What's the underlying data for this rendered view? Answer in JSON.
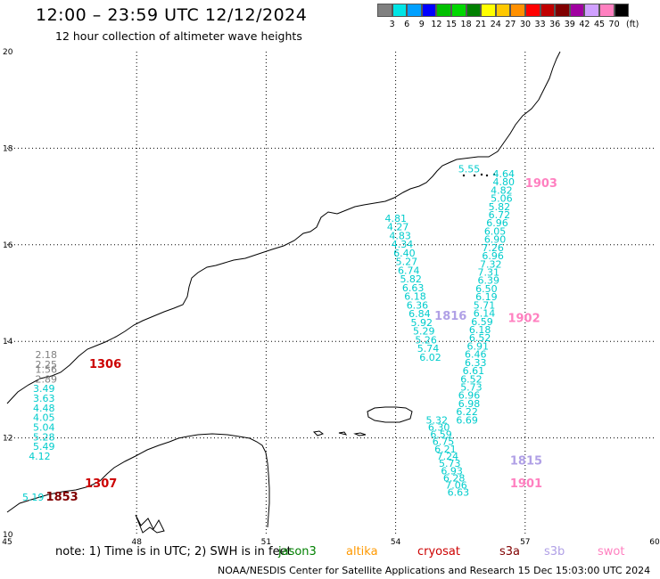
{
  "title": "12:00 – 23:59 UTC 12/12/2024",
  "subtitle": "12 hour collection of altimeter wave heights",
  "legend": {
    "unit_label": "(ft)",
    "bins": [
      {
        "color": "#808080",
        "label": "3"
      },
      {
        "color": "#00e5e5",
        "label": "6"
      },
      {
        "color": "#00a0ff",
        "label": "9"
      },
      {
        "color": "#0000ff",
        "label": "12"
      },
      {
        "color": "#00c000",
        "label": "15"
      },
      {
        "color": "#00d800",
        "label": "18"
      },
      {
        "color": "#008000",
        "label": "21"
      },
      {
        "color": "#ffff00",
        "label": "24"
      },
      {
        "color": "#ffc800",
        "label": "27"
      },
      {
        "color": "#ff9000",
        "label": "30"
      },
      {
        "color": "#ff0000",
        "label": "33"
      },
      {
        "color": "#c00000",
        "label": "36"
      },
      {
        "color": "#800000",
        "label": "39"
      },
      {
        "color": "#a000a0",
        "label": "42"
      },
      {
        "color": "#d0a0ff",
        "label": "45"
      },
      {
        "color": "#ff80c0",
        "label": "70"
      },
      {
        "color": "#000000",
        "label": ""
      }
    ]
  },
  "map": {
    "lon_range": [
      45,
      60
    ],
    "lat_range": [
      10,
      20
    ],
    "lon_ticks": [
      45,
      48,
      51,
      54,
      57,
      60
    ],
    "lat_ticks": [
      10,
      12,
      14,
      16,
      18,
      20
    ],
    "tracks": [
      {
        "satellite": "cryosat",
        "color": "#cc0000",
        "times": [
          {
            "label": "1306",
            "lon": 46.9,
            "lat": 13.45
          },
          {
            "label": "1307",
            "lon": 46.8,
            "lat": 10.98
          }
        ],
        "points": [
          {
            "lon": 45.65,
            "lat": 13.65,
            "value": "2.18",
            "color": "#808080"
          },
          {
            "lon": 45.65,
            "lat": 13.45,
            "value": "2.25",
            "color": "#808080"
          },
          {
            "lon": 45.65,
            "lat": 13.35,
            "value": "1.56",
            "color": "#808080"
          },
          {
            "lon": 45.65,
            "lat": 13.15,
            "value": "2.89",
            "color": "#808080"
          },
          {
            "lon": 45.6,
            "lat": 12.95,
            "value": "3.49",
            "color": "#00cccc"
          },
          {
            "lon": 45.6,
            "lat": 12.75,
            "value": "3.63",
            "color": "#00cccc"
          },
          {
            "lon": 45.6,
            "lat": 12.55,
            "value": "4.48",
            "color": "#00cccc"
          },
          {
            "lon": 45.6,
            "lat": 12.35,
            "value": "4.05",
            "color": "#00cccc"
          },
          {
            "lon": 45.6,
            "lat": 12.15,
            "value": "5.04",
            "color": "#00cccc"
          },
          {
            "lon": 45.6,
            "lat": 11.95,
            "value": "5.28",
            "color": "#00cccc"
          },
          {
            "lon": 45.6,
            "lat": 11.75,
            "value": "5.49",
            "color": "#00cccc"
          },
          {
            "lon": 45.5,
            "lat": 11.55,
            "value": "4.12",
            "color": "#00cccc"
          }
        ]
      },
      {
        "satellite": "s3a",
        "color": "#800000",
        "times": [
          {
            "label": "1853",
            "lon": 45.9,
            "lat": 10.7
          }
        ],
        "points": [
          {
            "lon": 45.35,
            "lat": 10.7,
            "value": "5.19",
            "color": "#00cccc"
          }
        ]
      },
      {
        "satellite": "s3b",
        "color": "#b0a0e6",
        "times": [
          {
            "label": "1816",
            "lon": 54.9,
            "lat": 14.45
          },
          {
            "label": "1815",
            "lon": 56.65,
            "lat": 11.45
          }
        ],
        "points": [
          {
            "lon": 53.75,
            "lat": 16.48,
            "value": "4.81",
            "color": "#00cccc"
          },
          {
            "lon": 53.8,
            "lat": 16.3,
            "value": "4.27",
            "color": "#00cccc"
          },
          {
            "lon": 53.85,
            "lat": 16.12,
            "value": "4.83",
            "color": "#00cccc"
          },
          {
            "lon": 53.9,
            "lat": 15.94,
            "value": "4.34",
            "color": "#00cccc"
          },
          {
            "lon": 53.95,
            "lat": 15.76,
            "value": "6.40",
            "color": "#00cccc"
          },
          {
            "lon": 54.0,
            "lat": 15.58,
            "value": "5.27",
            "color": "#00cccc"
          },
          {
            "lon": 54.05,
            "lat": 15.4,
            "value": "6.74",
            "color": "#00cccc"
          },
          {
            "lon": 54.1,
            "lat": 15.22,
            "value": "5.82",
            "color": "#00cccc"
          },
          {
            "lon": 54.15,
            "lat": 15.04,
            "value": "6.63",
            "color": "#00cccc"
          },
          {
            "lon": 54.2,
            "lat": 14.86,
            "value": "6.18",
            "color": "#00cccc"
          },
          {
            "lon": 54.25,
            "lat": 14.68,
            "value": "6.36",
            "color": "#00cccc"
          },
          {
            "lon": 54.3,
            "lat": 14.5,
            "value": "6.84",
            "color": "#00cccc"
          },
          {
            "lon": 54.35,
            "lat": 14.32,
            "value": "5.92",
            "color": "#00cccc"
          },
          {
            "lon": 54.4,
            "lat": 14.14,
            "value": "5.29",
            "color": "#00cccc"
          },
          {
            "lon": 54.45,
            "lat": 13.96,
            "value": "5.26",
            "color": "#00cccc"
          },
          {
            "lon": 54.5,
            "lat": 13.78,
            "value": "5.74",
            "color": "#00cccc"
          },
          {
            "lon": 54.55,
            "lat": 13.6,
            "value": "6.02",
            "color": "#00cccc"
          },
          {
            "lon": 54.7,
            "lat": 12.3,
            "value": "5.32",
            "color": "#00cccc"
          },
          {
            "lon": 54.75,
            "lat": 12.15,
            "value": "6.30",
            "color": "#00cccc"
          },
          {
            "lon": 54.8,
            "lat": 12.0,
            "value": "6.59",
            "color": "#00cccc"
          },
          {
            "lon": 54.85,
            "lat": 11.85,
            "value": "6.75",
            "color": "#00cccc"
          },
          {
            "lon": 54.9,
            "lat": 11.7,
            "value": "6.21",
            "color": "#00cccc"
          },
          {
            "lon": 54.95,
            "lat": 11.55,
            "value": "7.24",
            "color": "#00cccc"
          },
          {
            "lon": 55.0,
            "lat": 11.4,
            "value": "5.73",
            "color": "#00cccc"
          },
          {
            "lon": 55.05,
            "lat": 11.25,
            "value": "6.93",
            "color": "#00cccc"
          },
          {
            "lon": 55.1,
            "lat": 11.1,
            "value": "6.28",
            "color": "#00cccc"
          },
          {
            "lon": 55.15,
            "lat": 10.95,
            "value": "7.06",
            "color": "#00cccc"
          },
          {
            "lon": 55.2,
            "lat": 10.8,
            "value": "6.63",
            "color": "#00cccc"
          }
        ]
      },
      {
        "satellite": "swot",
        "color": "#ff80c0",
        "times": [
          {
            "label": "1903",
            "lon": 57.0,
            "lat": 17.2
          },
          {
            "label": "1902",
            "lon": 56.6,
            "lat": 14.4
          },
          {
            "label": "1901",
            "lon": 56.65,
            "lat": 10.98
          }
        ],
        "points": [
          {
            "lon": 56.25,
            "lat": 17.4,
            "value": "4.64",
            "color": "#00cccc"
          },
          {
            "lon": 56.25,
            "lat": 17.23,
            "value": "4.80",
            "color": "#00cccc"
          },
          {
            "lon": 56.2,
            "lat": 17.06,
            "value": "4.82",
            "color": "#00cccc"
          },
          {
            "lon": 56.2,
            "lat": 16.89,
            "value": "5.06",
            "color": "#00cccc"
          },
          {
            "lon": 56.15,
            "lat": 16.72,
            "value": "5.82",
            "color": "#00cccc"
          },
          {
            "lon": 56.15,
            "lat": 16.55,
            "value": "6.72",
            "color": "#00cccc"
          },
          {
            "lon": 56.1,
            "lat": 16.38,
            "value": "6.96",
            "color": "#00cccc"
          },
          {
            "lon": 56.05,
            "lat": 16.21,
            "value": "6.05",
            "color": "#00cccc"
          },
          {
            "lon": 56.05,
            "lat": 16.04,
            "value": "6.90",
            "color": "#00cccc"
          },
          {
            "lon": 56.0,
            "lat": 15.87,
            "value": "7.26",
            "color": "#00cccc"
          },
          {
            "lon": 56.0,
            "lat": 15.7,
            "value": "6.96",
            "color": "#00cccc"
          },
          {
            "lon": 55.95,
            "lat": 15.53,
            "value": "7.32",
            "color": "#00cccc"
          },
          {
            "lon": 55.9,
            "lat": 15.36,
            "value": "7.31",
            "color": "#00cccc"
          },
          {
            "lon": 55.9,
            "lat": 15.19,
            "value": "6.39",
            "color": "#00cccc"
          },
          {
            "lon": 55.85,
            "lat": 15.02,
            "value": "6.50",
            "color": "#00cccc"
          },
          {
            "lon": 55.85,
            "lat": 14.85,
            "value": "6.19",
            "color": "#00cccc"
          },
          {
            "lon": 55.8,
            "lat": 14.68,
            "value": "5.71",
            "color": "#00cccc"
          },
          {
            "lon": 55.8,
            "lat": 14.51,
            "value": "6.14",
            "color": "#00cccc"
          },
          {
            "lon": 55.75,
            "lat": 14.34,
            "value": "6.59",
            "color": "#00cccc"
          },
          {
            "lon": 55.7,
            "lat": 14.17,
            "value": "6.18",
            "color": "#00cccc"
          },
          {
            "lon": 55.7,
            "lat": 14.0,
            "value": "6.52",
            "color": "#00cccc"
          },
          {
            "lon": 55.65,
            "lat": 13.83,
            "value": "6.91",
            "color": "#00cccc"
          },
          {
            "lon": 55.6,
            "lat": 13.66,
            "value": "6.46",
            "color": "#00cccc"
          },
          {
            "lon": 55.6,
            "lat": 13.49,
            "value": "6.33",
            "color": "#00cccc"
          },
          {
            "lon": 55.55,
            "lat": 13.32,
            "value": "6.61",
            "color": "#00cccc"
          },
          {
            "lon": 55.5,
            "lat": 13.15,
            "value": "6.52",
            "color": "#00cccc"
          },
          {
            "lon": 55.5,
            "lat": 12.98,
            "value": "5.73",
            "color": "#00cccc"
          },
          {
            "lon": 55.45,
            "lat": 12.81,
            "value": "6.96",
            "color": "#00cccc"
          },
          {
            "lon": 55.45,
            "lat": 12.64,
            "value": "6.98",
            "color": "#00cccc"
          },
          {
            "lon": 55.4,
            "lat": 12.47,
            "value": "6.22",
            "color": "#00cccc"
          },
          {
            "lon": 55.4,
            "lat": 12.3,
            "value": "6.69",
            "color": "#00cccc"
          }
        ]
      },
      {
        "satellite": "altika",
        "color": "#ff9900",
        "times": [],
        "points": [
          {
            "lon": 55.45,
            "lat": 17.5,
            "value": "5.55",
            "color": "#00cccc"
          }
        ]
      }
    ]
  },
  "footer": {
    "note": "note:  1) Time is in UTC; 2) SWH is in feet",
    "satellites": [
      {
        "name": "jason3",
        "color": "#008000"
      },
      {
        "name": "altika",
        "color": "#ff9900"
      },
      {
        "name": "cryosat",
        "color": "#cc0000"
      },
      {
        "name": "s3a",
        "color": "#800000"
      },
      {
        "name": "s3b",
        "color": "#b0a0e6"
      },
      {
        "name": "swot",
        "color": "#ff80c0"
      }
    ],
    "credit": "NOAA/NESDIS Center for Satellite Applications and Research     15 Dec 15:03:00 UTC 2024"
  }
}
